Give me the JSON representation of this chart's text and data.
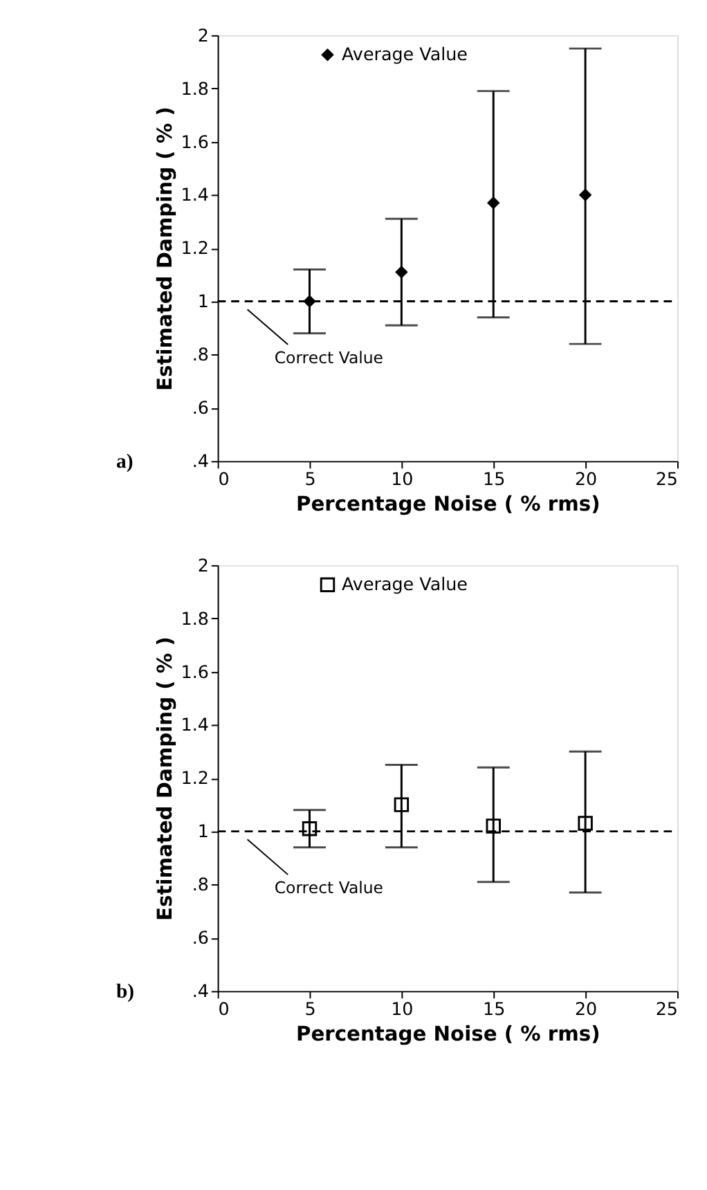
{
  "chart_data": [
    {
      "type": "scatter",
      "xlabel": "Percentage Noise ( % rms)",
      "ylabel": "Estimated Damping ( % )",
      "annotations": [
        "a)"
      ],
      "x": [
        5,
        10,
        15,
        20
      ],
      "series": [
        {
          "name": "Average Value",
          "color": "#000000",
          "values": [
            1.0,
            1.11,
            1.37,
            1.4
          ],
          "errors": [
            [
              0.88,
              1.12
            ],
            [
              0.91,
              1.31
            ],
            [
              0.94,
              1.79
            ],
            [
              0.84,
              1.95
            ]
          ]
        }
      ],
      "marker": "diamond",
      "legend": "top left",
      "ref_lines": [
        {
          "axis": "y",
          "value": 1,
          "label": "Correct Value",
          "line_style": "dashed"
        }
      ],
      "xlim": [
        0,
        25
      ],
      "xticks": [
        0,
        5,
        10,
        15,
        20,
        25
      ],
      "ylim": [
        0.4,
        2
      ],
      "yticks": [
        {
          "value": 0.4,
          "label": ".4"
        },
        {
          "value": 0.6,
          "label": ".6"
        },
        {
          "value": 0.8,
          "label": ".8"
        },
        1,
        1.2,
        1.4,
        1.6,
        1.8,
        2
      ]
    },
    {
      "type": "scatter",
      "xlabel": "Percentage Noise ( % rms)",
      "ylabel": "Estimated Damping ( % )",
      "annotations": [
        "b)"
      ],
      "x": [
        5,
        10,
        15,
        20
      ],
      "series": [
        {
          "name": "Average Value",
          "color": "#000000",
          "values": [
            1.01,
            1.1,
            1.02,
            1.03
          ],
          "errors": [
            [
              0.94,
              1.08
            ],
            [
              0.94,
              1.25
            ],
            [
              0.81,
              1.24
            ],
            [
              0.77,
              1.3
            ]
          ]
        }
      ],
      "marker": "square",
      "legend": "top left",
      "ref_lines": [
        {
          "axis": "y",
          "value": 1,
          "label": "Correct Value",
          "line_style": "dashed"
        }
      ],
      "xlim": [
        0,
        25
      ],
      "xticks": [
        0,
        5,
        10,
        15,
        20,
        25
      ],
      "ylim": [
        0.4,
        2
      ],
      "yticks": [
        {
          "value": 0.4,
          "label": ".4"
        },
        {
          "value": 0.6,
          "label": ".6"
        },
        {
          "value": 0.8,
          "label": ".8"
        },
        1,
        1.2,
        1.4,
        1.6,
        1.8,
        2
      ]
    }
  ]
}
